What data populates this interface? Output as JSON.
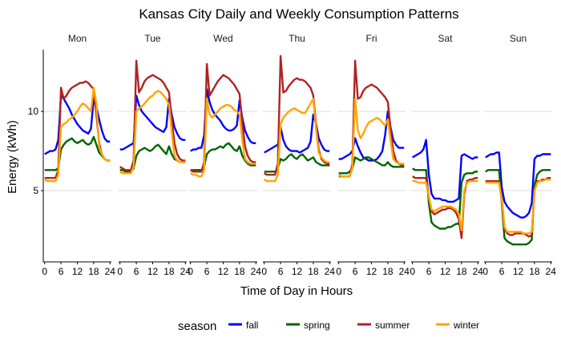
{
  "chart_data": {
    "type": "line",
    "title": "Kansas City Daily and Weekly Consumption Patterns",
    "xlabel": "Time of Day in Hours",
    "ylabel": "Energy (kWh)",
    "xlim": [
      -0.5,
      24.5
    ],
    "ylim": [
      0.5,
      13.9
    ],
    "x_ticks": [
      0,
      6,
      12,
      18,
      24
    ],
    "y_ticks": [
      5,
      10
    ],
    "grid": "horizontal",
    "legend_title": "season",
    "legend_position": "bottom",
    "panels": [
      "Mon",
      "Tue",
      "Wed",
      "Thu",
      "Fri",
      "Sat",
      "Sun"
    ],
    "hours": [
      0,
      1,
      2,
      3,
      4,
      5,
      6,
      7,
      8,
      9,
      10,
      11,
      12,
      13,
      14,
      15,
      16,
      17,
      18,
      19,
      20,
      21,
      22,
      23,
      24
    ],
    "series": [
      {
        "name": "fall",
        "color": "#0000ff",
        "values": {
          "Mon": [
            7.3,
            7.4,
            7.5,
            7.5,
            7.6,
            8.2,
            11.0,
            10.8,
            10.5,
            10.2,
            9.8,
            9.5,
            9.2,
            9.0,
            8.8,
            8.7,
            8.6,
            8.9,
            10.8,
            10.3,
            9.5,
            8.8,
            8.3,
            8.1,
            8.1
          ],
          "Tue": [
            7.6,
            7.6,
            7.7,
            7.8,
            7.9,
            8.0,
            11.0,
            10.4,
            10.0,
            9.8,
            9.6,
            9.4,
            9.2,
            9.0,
            8.9,
            8.8,
            8.7,
            9.0,
            10.8,
            9.8,
            9.0,
            8.6,
            8.3,
            8.2,
            8.2
          ],
          "Wed": [
            7.5,
            7.6,
            7.6,
            7.7,
            7.7,
            8.5,
            11.4,
            10.6,
            10.1,
            9.8,
            9.6,
            9.4,
            9.1,
            8.9,
            8.8,
            8.8,
            8.9,
            9.1,
            10.7,
            9.6,
            8.8,
            8.4,
            8.1,
            8.0,
            8.0
          ],
          "Thu": [
            7.4,
            7.5,
            7.6,
            7.7,
            7.8,
            7.9,
            9.0,
            8.2,
            7.8,
            7.6,
            7.5,
            7.5,
            7.5,
            7.4,
            7.5,
            7.6,
            7.7,
            8.1,
            9.8,
            9.2,
            8.3,
            7.9,
            7.6,
            7.5,
            7.5
          ],
          "Fri": [
            7.0,
            7.0,
            7.1,
            7.2,
            7.3,
            7.5,
            8.3,
            7.8,
            7.4,
            7.1,
            7.0,
            6.9,
            6.9,
            6.9,
            7.0,
            7.2,
            7.5,
            8.5,
            10.0,
            9.0,
            8.2,
            7.9,
            7.7,
            7.7,
            7.7
          ],
          "Sat": [
            7.1,
            7.2,
            7.3,
            7.4,
            7.6,
            8.2,
            6.0,
            4.8,
            4.5,
            4.5,
            4.5,
            4.4,
            4.4,
            4.3,
            4.3,
            4.3,
            4.4,
            4.5,
            7.2,
            7.3,
            7.2,
            7.1,
            7.0,
            7.1,
            7.1
          ],
          "Sun": [
            7.1,
            7.2,
            7.3,
            7.3,
            7.4,
            7.4,
            5.2,
            4.3,
            4.0,
            3.8,
            3.6,
            3.5,
            3.4,
            3.3,
            3.3,
            3.4,
            3.6,
            4.2,
            7.0,
            7.2,
            7.2,
            7.3,
            7.3,
            7.3,
            7.3
          ]
        }
      },
      {
        "name": "spring",
        "color": "#006400",
        "values": {
          "Mon": [
            6.3,
            6.3,
            6.3,
            6.3,
            6.3,
            6.4,
            7.6,
            7.9,
            8.1,
            8.2,
            8.3,
            8.1,
            8.0,
            8.1,
            8.2,
            8.0,
            7.9,
            8.0,
            8.4,
            7.9,
            7.4,
            7.2,
            7.0,
            6.9,
            6.9
          ],
          "Tue": [
            6.3,
            6.3,
            6.2,
            6.2,
            6.2,
            6.4,
            7.2,
            7.5,
            7.6,
            7.7,
            7.6,
            7.5,
            7.6,
            7.8,
            7.9,
            7.7,
            7.5,
            7.3,
            7.8,
            7.3,
            7.0,
            6.9,
            6.8,
            6.8,
            6.8
          ],
          "Wed": [
            6.3,
            6.3,
            6.3,
            6.3,
            6.3,
            6.5,
            7.3,
            7.5,
            7.6,
            7.6,
            7.7,
            7.8,
            7.7,
            7.9,
            8.0,
            7.8,
            7.6,
            7.5,
            7.8,
            7.2,
            6.9,
            6.7,
            6.6,
            6.6,
            6.6
          ],
          "Thu": [
            6.2,
            6.2,
            6.2,
            6.2,
            6.2,
            6.4,
            7.0,
            6.9,
            7.0,
            7.2,
            7.3,
            7.1,
            7.0,
            7.2,
            7.3,
            7.1,
            6.9,
            7.0,
            7.1,
            6.8,
            6.7,
            6.6,
            6.6,
            6.6,
            6.6
          ],
          "Fri": [
            6.1,
            6.1,
            6.1,
            6.1,
            6.2,
            6.4,
            7.1,
            7.0,
            6.9,
            7.0,
            7.1,
            7.1,
            7.0,
            6.9,
            6.8,
            6.7,
            6.6,
            6.6,
            6.8,
            6.6,
            6.5,
            6.5,
            6.5,
            6.5,
            6.5
          ],
          "Sat": [
            6.4,
            6.3,
            6.3,
            6.3,
            6.3,
            6.3,
            4.2,
            3.0,
            2.8,
            2.7,
            2.6,
            2.6,
            2.6,
            2.7,
            2.7,
            2.8,
            2.9,
            2.9,
            5.5,
            6.0,
            6.1,
            6.1,
            6.1,
            6.2,
            6.2
          ],
          "Sun": [
            6.2,
            6.3,
            6.3,
            6.3,
            6.3,
            6.3,
            4.2,
            2.0,
            1.8,
            1.7,
            1.6,
            1.6,
            1.6,
            1.6,
            1.6,
            1.6,
            1.7,
            1.9,
            5.3,
            6.0,
            6.2,
            6.3,
            6.3,
            6.3,
            6.3
          ]
        }
      },
      {
        "name": "summer",
        "color": "#b22222",
        "values": {
          "Mon": [
            5.8,
            5.8,
            5.8,
            5.8,
            5.8,
            6.3,
            11.5,
            10.8,
            11.0,
            11.3,
            11.5,
            11.6,
            11.7,
            11.8,
            11.8,
            11.9,
            11.8,
            11.6,
            11.4,
            9.8,
            8.0,
            7.3,
            7.0,
            6.9,
            6.9
          ],
          "Tue": [
            6.5,
            6.4,
            6.3,
            6.3,
            6.3,
            6.9,
            13.2,
            11.2,
            11.5,
            11.9,
            12.1,
            12.2,
            12.3,
            12.2,
            12.1,
            12.0,
            11.8,
            11.5,
            11.2,
            9.5,
            8.0,
            7.3,
            7.0,
            6.9,
            6.9
          ],
          "Wed": [
            6.3,
            6.2,
            6.2,
            6.2,
            6.2,
            6.8,
            13.0,
            11.0,
            11.3,
            11.6,
            11.9,
            12.1,
            12.3,
            12.2,
            12.1,
            11.9,
            11.7,
            11.4,
            11.1,
            9.3,
            7.8,
            7.2,
            6.9,
            6.8,
            6.8
          ],
          "Thu": [
            6.1,
            6.0,
            6.0,
            6.0,
            6.0,
            6.7,
            13.5,
            11.2,
            11.3,
            11.6,
            11.8,
            12.0,
            12.1,
            12.0,
            12.0,
            11.9,
            11.7,
            11.5,
            11.0,
            9.2,
            7.6,
            7.0,
            6.8,
            6.7,
            6.7
          ],
          "Fri": [
            5.9,
            5.9,
            5.9,
            5.9,
            5.9,
            6.7,
            13.2,
            10.8,
            10.9,
            11.3,
            11.5,
            11.6,
            11.7,
            11.6,
            11.5,
            11.3,
            11.1,
            10.9,
            10.6,
            8.9,
            7.5,
            6.9,
            6.7,
            6.6,
            6.6
          ],
          "Sat": [
            5.9,
            5.8,
            5.8,
            5.8,
            5.8,
            5.8,
            4.6,
            3.7,
            3.5,
            3.6,
            3.7,
            3.8,
            3.8,
            3.9,
            3.9,
            3.8,
            3.6,
            3.2,
            2.0,
            4.8,
            5.6,
            5.7,
            5.7,
            5.8,
            5.8
          ],
          "Sun": [
            5.6,
            5.6,
            5.6,
            5.6,
            5.6,
            5.6,
            4.5,
            2.6,
            2.3,
            2.2,
            2.2,
            2.3,
            2.3,
            2.3,
            2.3,
            2.2,
            2.1,
            2.2,
            5.0,
            5.6,
            5.6,
            5.7,
            5.7,
            5.8,
            5.8
          ]
        }
      },
      {
        "name": "winter",
        "color": "#ffa500",
        "values": {
          "Mon": [
            5.7,
            5.6,
            5.6,
            5.6,
            5.6,
            6.0,
            9.0,
            9.2,
            9.3,
            9.5,
            9.6,
            9.8,
            10.0,
            10.3,
            10.5,
            10.4,
            10.2,
            10.0,
            11.5,
            10.5,
            7.8,
            7.3,
            7.0,
            6.9,
            6.9
          ],
          "Tue": [
            6.2,
            6.1,
            6.1,
            6.1,
            6.1,
            6.5,
            10.0,
            10.2,
            10.3,
            10.5,
            10.7,
            10.9,
            11.0,
            11.2,
            11.3,
            11.2,
            11.0,
            10.8,
            10.4,
            8.7,
            7.2,
            6.9,
            6.8,
            6.8,
            6.8
          ],
          "Wed": [
            6.1,
            6.0,
            6.0,
            5.9,
            5.9,
            6.3,
            10.8,
            9.8,
            9.6,
            9.8,
            10.0,
            10.2,
            10.3,
            10.4,
            10.4,
            10.3,
            10.1,
            10.0,
            9.8,
            8.2,
            7.0,
            6.8,
            6.7,
            6.7,
            6.7
          ],
          "Thu": [
            5.7,
            5.6,
            5.6,
            5.6,
            5.6,
            6.0,
            9.2,
            9.6,
            9.8,
            10.0,
            10.1,
            10.2,
            10.1,
            10.0,
            9.9,
            9.9,
            10.2,
            10.5,
            10.8,
            8.9,
            7.4,
            7.1,
            6.9,
            6.8,
            6.8
          ],
          "Fri": [
            6.0,
            5.9,
            5.9,
            5.9,
            5.9,
            6.4,
            10.8,
            8.8,
            8.3,
            8.6,
            9.0,
            9.3,
            9.4,
            9.5,
            9.6,
            9.5,
            9.3,
            9.1,
            9.5,
            8.2,
            7.0,
            6.8,
            6.7,
            6.7,
            6.7
          ],
          "Sat": [
            5.6,
            5.6,
            5.5,
            5.5,
            5.5,
            5.5,
            4.6,
            3.8,
            3.7,
            3.8,
            3.9,
            4.0,
            4.0,
            4.0,
            4.0,
            3.9,
            3.8,
            3.5,
            2.5,
            5.0,
            5.5,
            5.6,
            5.6,
            5.6,
            5.6
          ],
          "Sun": [
            5.5,
            5.5,
            5.5,
            5.5,
            5.5,
            5.5,
            4.4,
            2.7,
            2.4,
            2.4,
            2.4,
            2.4,
            2.4,
            2.4,
            2.3,
            2.3,
            2.3,
            2.4,
            5.0,
            5.5,
            5.6,
            5.6,
            5.7,
            5.7,
            5.7
          ]
        }
      }
    ]
  }
}
